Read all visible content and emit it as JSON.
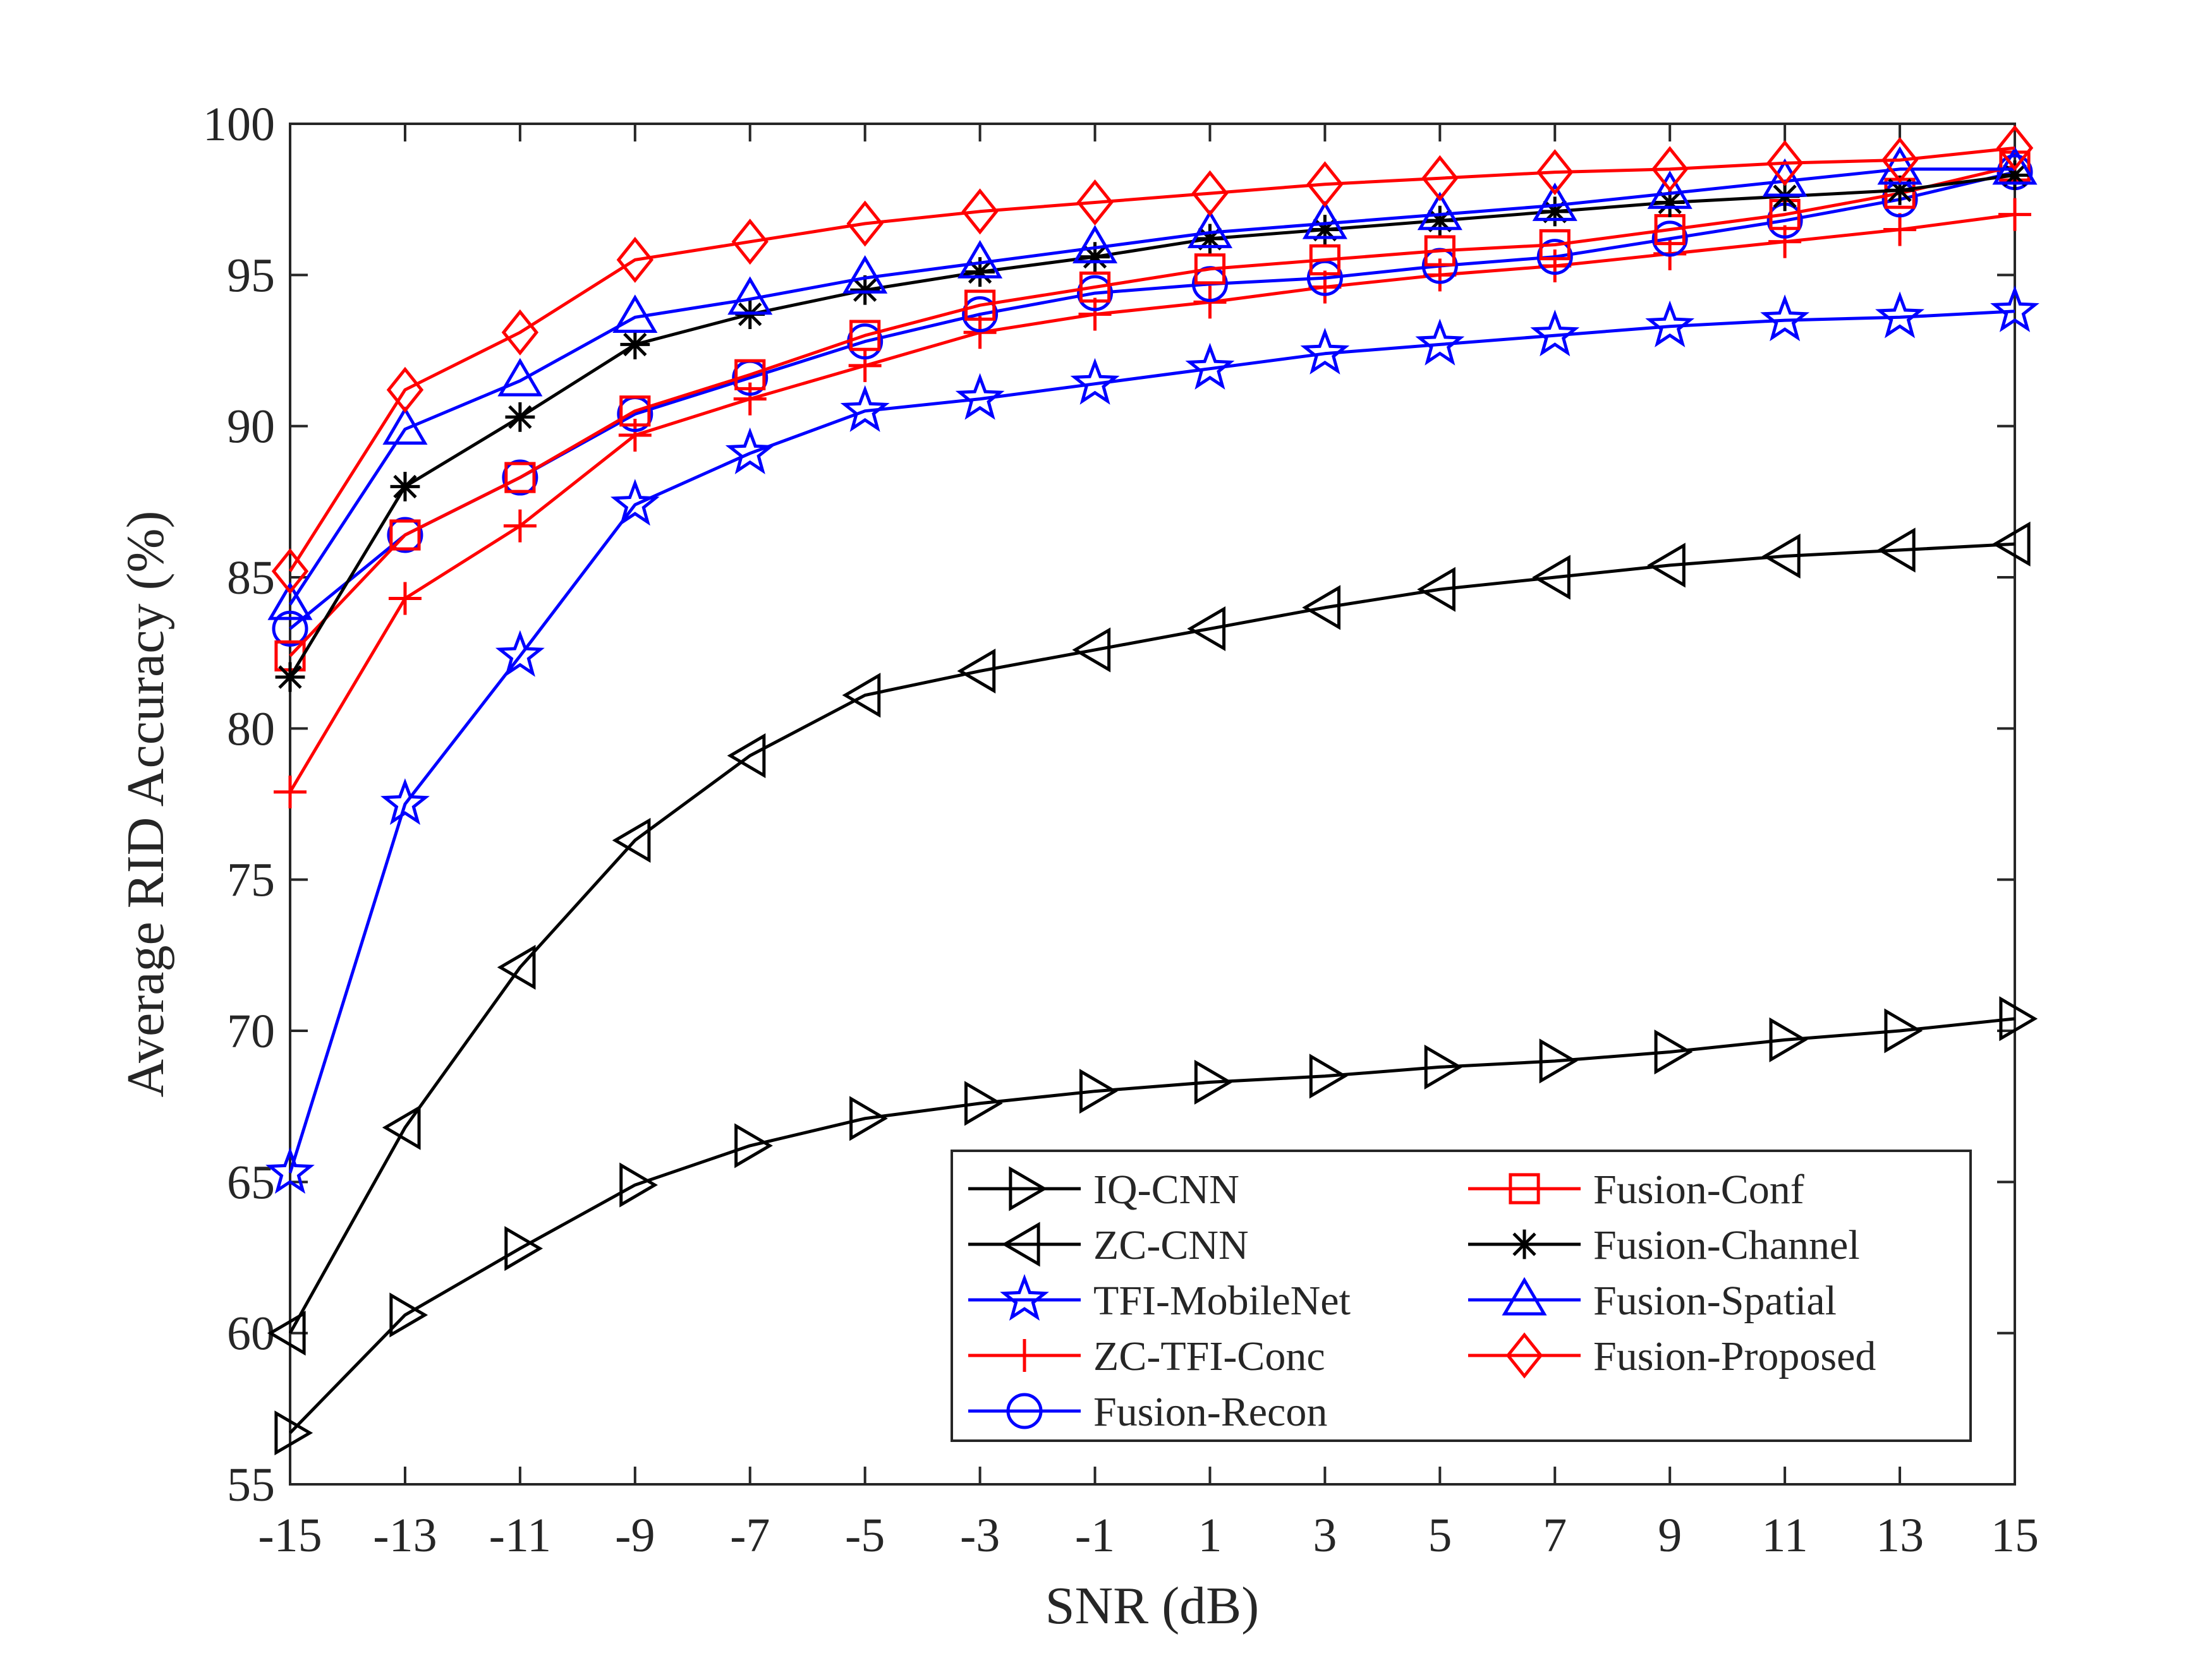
{
  "chart_data": {
    "type": "line",
    "title": "",
    "xlabel": "SNR (dB)",
    "ylabel": "Average RID Accuracy (%)",
    "xlim": [
      -15,
      15
    ],
    "ylim": [
      55,
      100
    ],
    "x_ticks": [
      -15,
      -13,
      -11,
      -9,
      -7,
      -5,
      -3,
      -1,
      1,
      3,
      5,
      7,
      9,
      11,
      13,
      15
    ],
    "y_ticks": [
      55,
      60,
      65,
      70,
      75,
      80,
      85,
      90,
      95,
      100
    ],
    "grid": false,
    "legend_position": "bottom-right",
    "x": [
      -15,
      -13,
      -11,
      -9,
      -7,
      -5,
      -3,
      -1,
      1,
      3,
      5,
      7,
      9,
      11,
      13,
      15
    ],
    "series": [
      {
        "name": "IQ-CNN",
        "color": "#000000",
        "marker": "triangle-right",
        "values": [
          56.7,
          60.6,
          62.8,
          64.9,
          66.2,
          67.1,
          67.6,
          68.0,
          68.3,
          68.5,
          68.8,
          69.0,
          69.3,
          69.7,
          70.0,
          70.4
        ]
      },
      {
        "name": "ZC-CNN",
        "color": "#000000",
        "marker": "triangle-left",
        "values": [
          60.0,
          66.8,
          72.1,
          76.3,
          79.1,
          81.1,
          81.9,
          82.6,
          83.3,
          84.0,
          84.6,
          85.0,
          85.4,
          85.7,
          85.9,
          86.1
        ]
      },
      {
        "name": "TFI-MobileNet",
        "color": "#0000ff",
        "marker": "pentagram",
        "values": [
          65.3,
          77.5,
          82.4,
          87.4,
          89.1,
          90.5,
          90.9,
          91.4,
          91.9,
          92.4,
          92.7,
          93.0,
          93.3,
          93.5,
          93.6,
          93.8
        ]
      },
      {
        "name": "ZC-TFI-Conc",
        "color": "#ff0000",
        "marker": "plus",
        "values": [
          77.9,
          84.3,
          86.7,
          89.7,
          90.9,
          92.0,
          93.1,
          93.7,
          94.1,
          94.6,
          95.0,
          95.3,
          95.7,
          96.1,
          96.5,
          97.0
        ]
      },
      {
        "name": "Fusion-Recon",
        "color": "#0000ff",
        "marker": "circle",
        "values": [
          83.3,
          86.4,
          88.3,
          90.4,
          91.6,
          92.8,
          93.7,
          94.4,
          94.7,
          94.9,
          95.3,
          95.6,
          96.2,
          96.8,
          97.5,
          98.4
        ]
      },
      {
        "name": "Fusion-Conf",
        "color": "#ff0000",
        "marker": "square",
        "values": [
          82.4,
          86.4,
          88.3,
          90.5,
          91.7,
          93.0,
          94.0,
          94.6,
          95.2,
          95.5,
          95.8,
          96.0,
          96.5,
          97.0,
          97.7,
          98.6
        ]
      },
      {
        "name": "Fusion-Channel",
        "color": "#000000",
        "marker": "asterisk",
        "values": [
          81.7,
          88.0,
          90.3,
          92.7,
          93.7,
          94.5,
          95.1,
          95.6,
          96.2,
          96.5,
          96.8,
          97.1,
          97.4,
          97.6,
          97.8,
          98.3
        ]
      },
      {
        "name": "Fusion-Spatial",
        "color": "#0000ff",
        "marker": "triangle-up",
        "values": [
          84.1,
          89.9,
          91.5,
          93.6,
          94.2,
          94.9,
          95.4,
          95.9,
          96.4,
          96.7,
          97.0,
          97.3,
          97.7,
          98.1,
          98.5,
          98.5
        ]
      },
      {
        "name": "Fusion-Proposed",
        "color": "#ff0000",
        "marker": "diamond",
        "values": [
          85.2,
          91.2,
          93.1,
          95.5,
          96.1,
          96.7,
          97.1,
          97.4,
          97.7,
          98.0,
          98.2,
          98.4,
          98.5,
          98.7,
          98.8,
          99.2
        ]
      }
    ]
  }
}
